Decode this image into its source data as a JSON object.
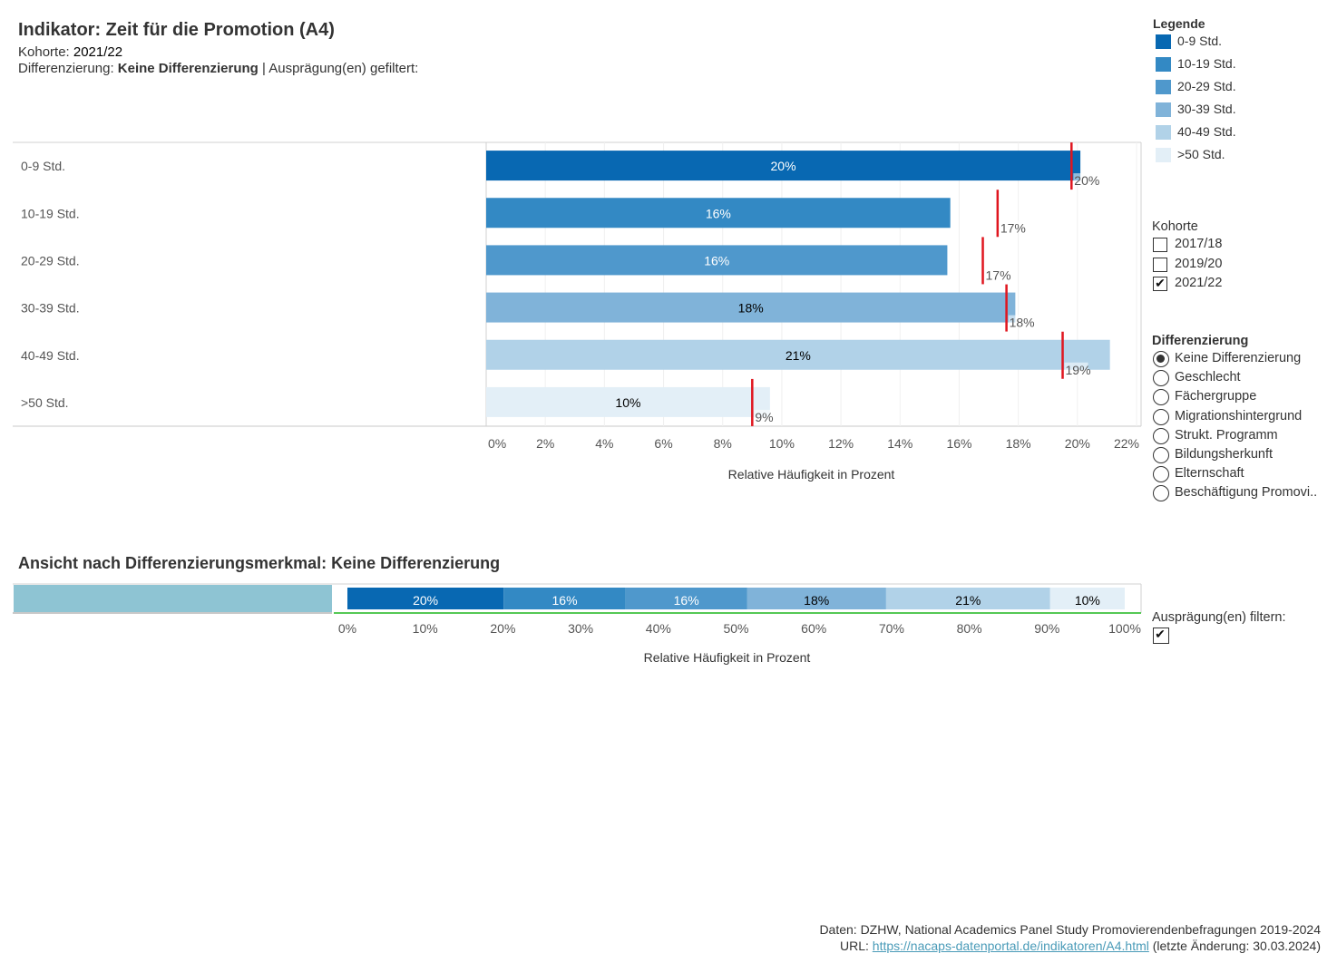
{
  "header": {
    "title": "Indikator: Zeit für die Promotion (A4)",
    "kohorte_label": "Kohorte: ",
    "kohorte_value": "2021/22",
    "diff_label": "Differenzierung: ",
    "diff_value": "Keine Differenzierung",
    "diff_suffix": " | Ausprägung(en) gefiltert:"
  },
  "legend": {
    "title": "Legende",
    "items": [
      {
        "label": "0-9 Std.",
        "color": "#0868b2"
      },
      {
        "label": "10-19 Std.",
        "color": "#3389c4"
      },
      {
        "label": "20-29 Std.",
        "color": "#4f98cc"
      },
      {
        "label": "30-39 Std.",
        "color": "#80b3d9"
      },
      {
        "label": "40-49 Std.",
        "color": "#b1d2e8"
      },
      {
        "label": ">50 Std.",
        "color": "#e3eff7"
      }
    ]
  },
  "kohorte_filter": {
    "title": "Kohorte",
    "options": [
      {
        "label": "2017/18",
        "checked": false
      },
      {
        "label": "2019/20",
        "checked": false
      },
      {
        "label": "2021/22",
        "checked": true
      }
    ]
  },
  "diff_filter": {
    "title": "Differenzierung",
    "options": [
      {
        "label": "Keine Differenzierung",
        "selected": true
      },
      {
        "label": "Geschlecht",
        "selected": false
      },
      {
        "label": "Fächergruppe",
        "selected": false
      },
      {
        "label": "Migrationshintergrund",
        "selected": false
      },
      {
        "label": "Strukt. Programm",
        "selected": false
      },
      {
        "label": "Bildungsherkunft",
        "selected": false
      },
      {
        "label": "Elternschaft",
        "selected": false
      },
      {
        "label": "Beschäftigung Promovi..",
        "selected": false
      }
    ]
  },
  "auspraegung_filter": {
    "label": "Ausprägung(en) filtern:",
    "checked": true
  },
  "section2": {
    "title": "Ansicht nach Differenzierungsmerkmal: Keine Differenzierung"
  },
  "chart_data": [
    {
      "type": "bar",
      "orientation": "horizontal",
      "categories": [
        "0-9 Std.",
        "10-19 Std.",
        "20-29 Std.",
        "30-39 Std.",
        "40-49 Std.",
        ">50 Std."
      ],
      "values": [
        20.1,
        15.7,
        15.6,
        17.9,
        21.1,
        9.6
      ],
      "value_labels": [
        "20%",
        "16%",
        "16%",
        "18%",
        "21%",
        "10%"
      ],
      "reference_values": [
        19.8,
        17.3,
        16.8,
        17.6,
        19.5,
        9.0
      ],
      "reference_labels": [
        "20%",
        "17%",
        "17%",
        "18%",
        "19%",
        "9%"
      ],
      "reference_color": "#e0161f",
      "xlabel": "Relative Häufigkeit in Prozent",
      "xlim": [
        0,
        22
      ],
      "xticks": [
        0,
        2,
        4,
        6,
        8,
        10,
        12,
        14,
        16,
        18,
        20,
        22
      ],
      "xtick_labels": [
        "0%",
        "2%",
        "4%",
        "6%",
        "8%",
        "10%",
        "12%",
        "14%",
        "16%",
        "18%",
        "20%",
        "22%"
      ],
      "colors": [
        "#0868b2",
        "#3389c4",
        "#4f98cc",
        "#80b3d9",
        "#b1d2e8",
        "#e3eff7"
      ]
    },
    {
      "type": "bar",
      "orientation": "horizontal",
      "stacked": true,
      "categories": [
        "0-9 Std.",
        "10-19 Std.",
        "20-29 Std.",
        "30-39 Std.",
        "40-49 Std.",
        ">50 Std."
      ],
      "values": [
        20.1,
        15.7,
        15.6,
        17.9,
        21.1,
        9.6
      ],
      "value_labels": [
        "20%",
        "16%",
        "16%",
        "18%",
        "21%",
        "10%"
      ],
      "xlabel": "Relative Häufigkeit in Prozent",
      "xlim": [
        0,
        100
      ],
      "xticks": [
        0,
        10,
        20,
        30,
        40,
        50,
        60,
        70,
        80,
        90,
        100
      ],
      "xtick_labels": [
        "0%",
        "10%",
        "20%",
        "30%",
        "40%",
        "50%",
        "60%",
        "70%",
        "80%",
        "90%",
        "100%"
      ],
      "colors": [
        "#0868b2",
        "#3389c4",
        "#4f98cc",
        "#80b3d9",
        "#b1d2e8",
        "#e3eff7"
      ]
    }
  ],
  "footer": {
    "line1": "Daten: DZHW, National Academics Panel Study Promovierendenbefragungen 2019-2024",
    "url_label": "URL: ",
    "url": "https://nacaps-datenportal.de/indikatoren/A4.html",
    "url_suffix": " (letzte Änderung: 30.03.2024)"
  }
}
